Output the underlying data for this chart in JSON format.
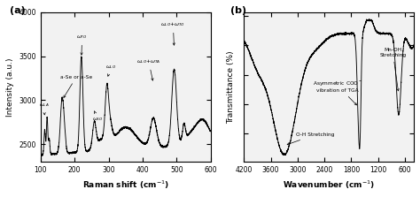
{
  "raman_xlim": [
    100,
    600
  ],
  "raman_ylim": [
    2300,
    4000
  ],
  "raman_yticks": [
    2500,
    3000,
    3500,
    4000
  ],
  "raman_xticks": [
    100,
    200,
    300,
    400,
    500,
    600
  ],
  "ftir_xlim": [
    4200,
    400
  ],
  "ftir_xticks": [
    4200,
    3600,
    3000,
    2400,
    1800,
    1200,
    600
  ],
  "bg_color": "#f0f0f0",
  "line_color": "#000000",
  "title_a": "(a)",
  "title_b": "(b)",
  "xlabel_a": "Raman shift (cm$^{-1}$)",
  "ylabel_a": "Intensity (a.u.)",
  "xlabel_b": "Wavenumber (cm$^{-1}$)",
  "ylabel_b": "Transmittance (%)"
}
